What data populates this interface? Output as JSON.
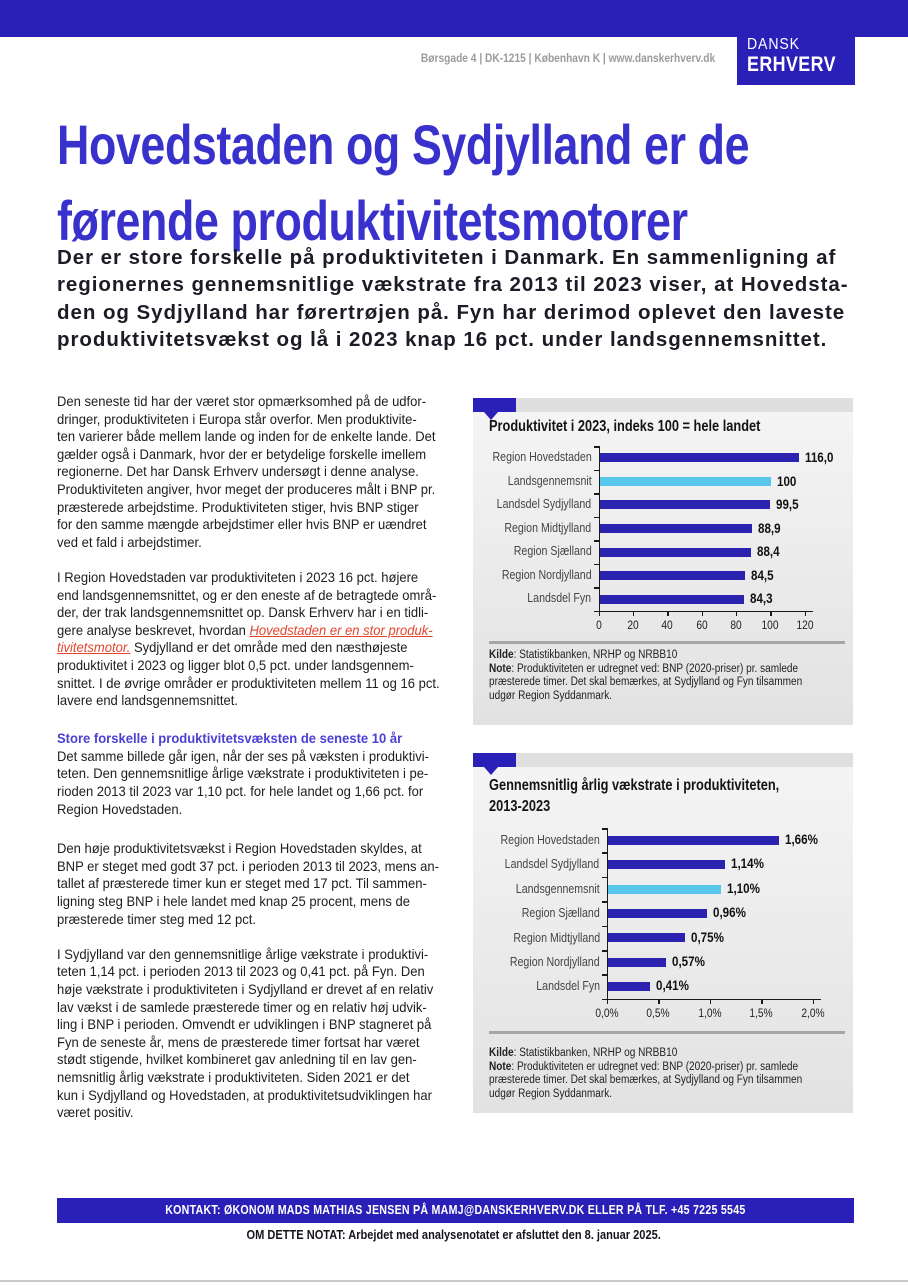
{
  "colors": {
    "brand_blue": "#2a20b8",
    "title_blue": "#3831cb",
    "subhead_blue": "#4a41d3",
    "link_red": "#e2462e",
    "bar_blue": "#2b22b0",
    "bar_lightblue": "#58c7ee"
  },
  "header": {
    "address": "Børsgade 4 | DK-1215 | København K | www.danskerhverv.dk",
    "logo_line1": "DANSK",
    "logo_line2": "ERHVERV"
  },
  "title": "Hovedstaden og Sydjylland er de\nførende produktivitetsmotorer",
  "intro": "Der er store forskelle på produktiviteten i Danmark. En sammenligning af\nregionernes gennemsnitlige vækstrate fra 2013 til 2023 viser, at Hovedsta-\nden og Sydjylland har førertrøjen på. Fyn har derimod oplevet den laveste\nproduktivitetsvækst og lå i 2023 knap 16 pct. under landsgennemsnittet.",
  "article": {
    "p1": "Den seneste tid har der været stor opmærksomhed på de udfor-\ndringer, produktiviteten i Europa står overfor. Men produktivite-\nten varierer både mellem lande og inden for de enkelte lande. Det\ngælder også i Danmark, hvor der er betydelige forskelle imellem\nregionerne. Det har Dansk Erhverv undersøgt i denne analyse.\nProduktiviteten angiver, hvor meget der produceres målt i BNP pr.\npræsterede arbejdstime. Produktiviteten stiger, hvis BNP stiger\nfor den samme mængde arbejdstimer eller hvis BNP er uændret\nved et fald i arbejdstimer.",
    "p2_before": "I Region Hovedstaden var produktiviteten i 2023 16 pct. højere\nend landsgennemsnittet, og er den eneste af de betragtede områ-\nder, der trak landsgennemsnittet op. Dansk Erhverv har i en tidli-\ngere analyse beskrevet, hvordan ",
    "p2_link": "Hovedstaden er en stor produk-\ntivitetsmotor.",
    "p2_after": " Sydjylland er det område med den næsthøjeste\nproduktivitet i 2023 og ligger blot 0,5 pct. under landsgennem-\nsnittet. I de øvrige områder er produktiviteten mellem 11 og 16 pct.\nlavere end landsgennemsnittet.",
    "subheading": "Store forskelle i produktivitetsvæksten de seneste 10 år",
    "p3": "Det samme billede går igen, når der ses på væksten i produktivi-\nteten. Den gennemsnitlige årlige vækstrate i produktiviteten i pe-\nrioden 2013 til 2023 var 1,10 pct. for hele landet og 1,66 pct. for\nRegion Hovedstaden.",
    "p4": "Den høje produktivitetsvækst i Region Hovedstaden skyldes, at\nBNP er steget med godt 37 pct. i perioden 2013 til 2023, mens an-\ntallet af præsterede timer kun er steget med 17 pct. Til sammen-\nligning steg BNP i hele landet med knap 25 procent, mens de\npræsterede timer steg med 12 pct.",
    "p5": "I Sydjylland var den gennemsnitlige årlige vækstrate i produktivi-\nteten 1,14 pct. i perioden 2013 til 2023 og 0,41 pct. på Fyn. Den\nhøje vækstrate i produktiviteten i Sydjylland er drevet af en relativ\nlav vækst i de samlede præsterede timer og en relativ høj udvik-\nling i BNP i perioden. Omvendt er udviklingen i BNP stagneret på\nFyn de seneste år, mens de præsterede timer fortsat har været\nstødt stigende, hvilket kombineret gav anledning til en lav gen-\nnemsnitlig årlig vækstrate i produktiviteten. Siden 2021 er det\nkun i Sydjylland og Hovedstaden, at produktivitetsudviklingen har\nværet positiv."
  },
  "chart_data": [
    {
      "type": "bar",
      "orientation": "horizontal",
      "title": "Produktivitet i 2023, indeks 100 = hele landet",
      "categories": [
        "Region Hovedstaden",
        "Landsgennemsnit",
        "Landsdel Sydjylland",
        "Region Midtjylland",
        "Region Sjælland",
        "Region Nordjylland",
        "Landsdel Fyn"
      ],
      "values": [
        116.0,
        100,
        99.5,
        88.9,
        88.4,
        84.5,
        84.3
      ],
      "value_labels": [
        "116,0",
        "100",
        "99,5",
        "88,9",
        "88,4",
        "84,5",
        "84,3"
      ],
      "highlight_index": 1,
      "bar_color": "#2b22b0",
      "highlight_color": "#58c7ee",
      "xlim": [
        0,
        120
      ],
      "xtick_labels": [
        "0",
        "20",
        "40",
        "60",
        "80",
        "100",
        "120"
      ],
      "legend": "none",
      "grid": "off",
      "source_label": "Kilde",
      "source_text": ": Statistikbanken, NRHP og NRBB10",
      "note_label": "Note",
      "note_text": ": Produktiviteten er udregnet ved: BNP (2020-priser) pr. samlede\npræsterede timer. Det skal bemærkes, at Sydjylland og Fyn tilsammen\nudgør Region Syddanmark."
    },
    {
      "type": "bar",
      "orientation": "horizontal",
      "title": "Gennemsnitlig årlig vækstrate i produktiviteten,\n2013-2023",
      "categories": [
        "Region Hovedstaden",
        "Landsdel Sydjylland",
        "Landsgennemsnit",
        "Region Sjælland",
        "Region Midtjylland",
        "Region Nordjylland",
        "Landsdel Fyn"
      ],
      "values": [
        1.66,
        1.14,
        1.1,
        0.96,
        0.75,
        0.57,
        0.41
      ],
      "value_labels": [
        "1,66%",
        "1,14%",
        "1,10%",
        "0,96%",
        "0,75%",
        "0,57%",
        "0,41%"
      ],
      "highlight_index": 2,
      "bar_color": "#2b22b0",
      "highlight_color": "#58c7ee",
      "xlim": [
        0,
        2.0
      ],
      "xtick_labels": [
        "0,0%",
        "0,5%",
        "1,0%",
        "1,5%",
        "2,0%"
      ],
      "legend": "none",
      "grid": "off",
      "source_label": "Kilde",
      "source_text": ": Statistikbanken, NRHP og NRBB10",
      "note_label": "Note",
      "note_text": ": Produktiviteten er udregnet ved: BNP (2020-priser) pr. samlede\npræsterede timer. Det skal bemærkes, at Sydjylland og Fyn tilsammen\nudgør Region Syddanmark."
    }
  ],
  "footer": {
    "contact": "KONTAKT:  ØKONOM MADS MATHIAS JENSEN PÅ MAMJ@DANSKERHVERV.DK ELLER PÅ TLF. +45 7225 5545",
    "about": "OM DETTE NOTAT: Arbejdet med analysenotatet er afsluttet den 8. januar 2025."
  }
}
